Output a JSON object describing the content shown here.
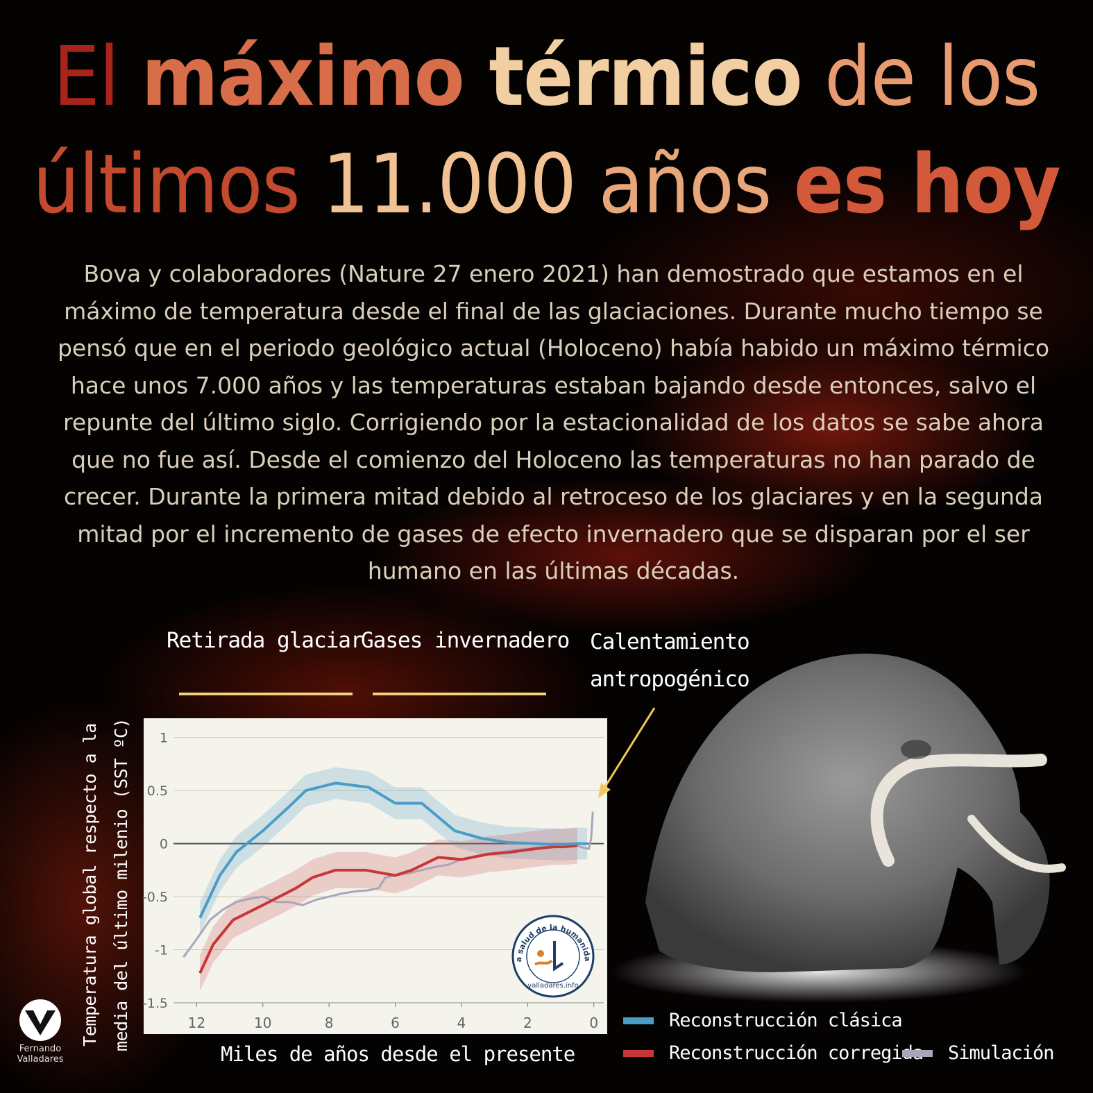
{
  "title": {
    "line1": [
      "El ",
      "máximo ",
      "térmico",
      " de los"
    ],
    "line2": [
      "últimos ",
      "11.000",
      " años ",
      "es hoy"
    ]
  },
  "description": "Bova y colaboradores (Nature 27 enero 2021) han demostrado que estamos en el máximo de temperatura desde el final de las glaciaciones. Durante mucho tiempo se pensó que en el periodo geológico actual (Holoceno) había habido un máximo térmico hace unos 7.000  años y las temperaturas estaban bajando desde entonces, salvo el repunte del último siglo. Corrigiendo por la estacionalidad de los datos se sabe ahora que no fue así. Desde el comienzo del Holoceno las temperaturas no han parado de crecer. Durante la primera mitad debido al retroceso de los glaciares y en la segunda mitad por el incremento de gases de efecto invernadero que se disparan por el ser humano en las últimas décadas.",
  "annotations": {
    "retirada": "Retirada glaciar",
    "gases": "Gases invernadero",
    "antrop_line1": "Calentamiento",
    "antrop_line2": "antropogénico"
  },
  "badge": {
    "ring_text": "La salud de la humanidad",
    "url": "valladares.info"
  },
  "author": {
    "name_line1": "Fernando",
    "name_line2": "Valladares"
  },
  "colors": {
    "clasica": "#4a9cc8",
    "corregida": "#c7373a",
    "simulacion": "#a8a6b8",
    "bracket": "#f0d37a"
  },
  "chart_data": {
    "type": "line",
    "xlabel": "Miles de años desde el presente",
    "ylabel": "Temperatura global respecto a la media del último milenio (SST ºC)",
    "xlim": [
      12.7,
      -0.3
    ],
    "ylim": [
      -1.5,
      1.05
    ],
    "xticks": [
      12,
      10,
      8,
      6,
      4,
      2,
      0
    ],
    "yticks": [
      1,
      0.5,
      0,
      -0.5,
      -1,
      -1.5
    ],
    "ytick_labels": [
      "1",
      "0.5",
      "0",
      "-0.5",
      "-1",
      "-1.5"
    ],
    "grid": true,
    "legend_position": "bottom-right",
    "series": [
      {
        "name": "Reconstrucción clásica",
        "x": [
          11.9,
          11.3,
          10.8,
          10.0,
          9.2,
          8.7,
          7.8,
          6.8,
          6.0,
          5.2,
          4.2,
          3.4,
          2.6,
          1.8,
          1.0,
          0.5,
          0.2
        ],
        "y": [
          -0.7,
          -0.3,
          -0.08,
          0.12,
          0.35,
          0.5,
          0.57,
          0.53,
          0.38,
          0.38,
          0.12,
          0.05,
          0.01,
          0.0,
          -0.01,
          0.0,
          0.0
        ],
        "band": 0.15
      },
      {
        "name": "Reconstrucción corregida",
        "x": [
          11.9,
          11.5,
          10.9,
          10.0,
          9.0,
          8.5,
          7.8,
          6.9,
          6.0,
          5.5,
          4.7,
          4.0,
          3.2,
          2.5,
          1.8,
          1.2,
          0.9,
          0.5
        ],
        "y": [
          -1.22,
          -0.95,
          -0.72,
          -0.58,
          -0.42,
          -0.32,
          -0.25,
          -0.25,
          -0.3,
          -0.25,
          -0.13,
          -0.15,
          -0.1,
          -0.08,
          -0.05,
          -0.03,
          -0.03,
          -0.02
        ],
        "band": 0.17
      },
      {
        "name": "Simulación",
        "x": [
          12.4,
          12.0,
          11.6,
          11.2,
          10.8,
          10.4,
          10.0,
          9.6,
          9.2,
          8.8,
          8.4,
          8.0,
          7.6,
          7.2,
          6.8,
          6.5,
          6.3,
          6.0,
          5.6,
          5.2,
          4.8,
          4.4,
          4.0,
          3.6,
          3.2,
          2.8,
          2.4,
          2.0,
          1.6,
          1.2,
          0.8,
          0.5,
          0.3,
          0.15,
          0.08,
          0.03
        ],
        "y": [
          -1.07,
          -0.9,
          -0.72,
          -0.62,
          -0.55,
          -0.52,
          -0.5,
          -0.55,
          -0.55,
          -0.58,
          -0.53,
          -0.5,
          -0.47,
          -0.45,
          -0.44,
          -0.42,
          -0.32,
          -0.3,
          -0.28,
          -0.25,
          -0.22,
          -0.2,
          -0.15,
          -0.12,
          -0.1,
          -0.08,
          -0.06,
          -0.05,
          -0.03,
          -0.03,
          -0.02,
          -0.02,
          -0.04,
          -0.05,
          0.05,
          0.3
        ]
      }
    ]
  }
}
